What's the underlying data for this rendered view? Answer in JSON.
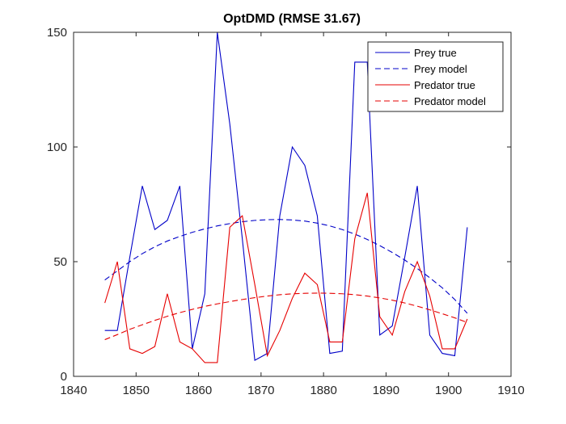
{
  "chart_data": {
    "type": "line",
    "title": "OptDMD (RMSE 31.67)",
    "xlabel": "",
    "ylabel": "",
    "xlim": [
      1840,
      1910
    ],
    "ylim": [
      0,
      150
    ],
    "xticks": [
      1840,
      1850,
      1860,
      1870,
      1880,
      1890,
      1900,
      1910
    ],
    "yticks": [
      0,
      50,
      100,
      150
    ],
    "grid": false,
    "legend_position": "top-right",
    "series": [
      {
        "name": "Prey true",
        "color": "#0000c8",
        "style": "solid",
        "x": [
          1845,
          1847,
          1849,
          1851,
          1853,
          1855,
          1857,
          1859,
          1861,
          1863,
          1865,
          1867,
          1869,
          1871,
          1873,
          1875,
          1877,
          1879,
          1881,
          1883,
          1885,
          1887,
          1889,
          1891,
          1893,
          1895,
          1897,
          1899,
          1901,
          1903
        ],
        "y": [
          20,
          20,
          52,
          83,
          64,
          68,
          83,
          12,
          36,
          150,
          110,
          60,
          7,
          10,
          70,
          100,
          92,
          70,
          10,
          11,
          137,
          137,
          18,
          22,
          52,
          83,
          18,
          10,
          9,
          65
        ]
      },
      {
        "name": "Prey model",
        "color": "#0000c8",
        "style": "dashed",
        "x": [
          1845,
          1847,
          1849,
          1851,
          1853,
          1855,
          1857,
          1859,
          1861,
          1863,
          1865,
          1867,
          1869,
          1871,
          1873,
          1875,
          1877,
          1879,
          1881,
          1883,
          1885,
          1887,
          1889,
          1891,
          1893,
          1895,
          1897,
          1899,
          1901,
          1903
        ],
        "y": [
          42,
          46,
          50,
          53.5,
          56.5,
          59,
          61,
          62.8,
          64.3,
          65.6,
          66.6,
          67.4,
          68,
          68.3,
          68.4,
          68.2,
          67.7,
          66.8,
          65.6,
          64,
          62,
          59.7,
          57,
          54,
          50.7,
          47,
          43,
          38.6,
          33.5,
          27.5
        ]
      },
      {
        "name": "Predator true",
        "color": "#e60000",
        "style": "solid",
        "x": [
          1845,
          1847,
          1849,
          1851,
          1853,
          1855,
          1857,
          1859,
          1861,
          1863,
          1865,
          1867,
          1869,
          1871,
          1873,
          1875,
          1877,
          1879,
          1881,
          1883,
          1885,
          1887,
          1889,
          1891,
          1893,
          1895,
          1897,
          1899,
          1901,
          1903
        ],
        "y": [
          32,
          50,
          12,
          10,
          13,
          36,
          15,
          12,
          6,
          6,
          65,
          70,
          40,
          9,
          20,
          34,
          45,
          40,
          15,
          15,
          60,
          80,
          26,
          18,
          37,
          50,
          35,
          12,
          12,
          25
        ]
      },
      {
        "name": "Predator model",
        "color": "#e60000",
        "style": "dashed",
        "x": [
          1845,
          1847,
          1849,
          1851,
          1853,
          1855,
          1857,
          1859,
          1861,
          1863,
          1865,
          1867,
          1869,
          1871,
          1873,
          1875,
          1877,
          1879,
          1881,
          1883,
          1885,
          1887,
          1889,
          1891,
          1893,
          1895,
          1897,
          1899,
          1901,
          1903
        ],
        "y": [
          16,
          18.2,
          20.5,
          22.5,
          24.4,
          26.2,
          27.8,
          29.2,
          30.5,
          31.6,
          32.6,
          33.5,
          34.3,
          35,
          35.6,
          36,
          36.2,
          36.3,
          36.2,
          36,
          35.6,
          35,
          34.2,
          33.2,
          32,
          30.6,
          29,
          27.3,
          25.5,
          23.5
        ]
      }
    ]
  }
}
